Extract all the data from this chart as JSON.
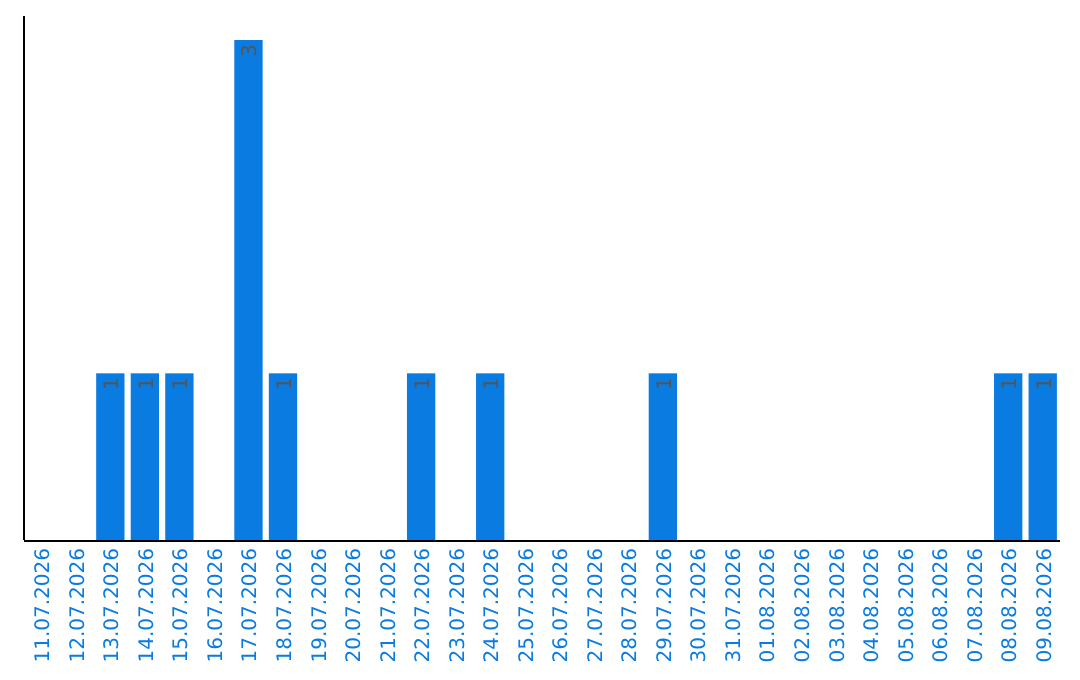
{
  "chart_data": {
    "type": "bar",
    "categories": [
      "11.07.2026",
      "12.07.2026",
      "13.07.2026",
      "14.07.2026",
      "15.07.2026",
      "16.07.2026",
      "17.07.2026",
      "18.07.2026",
      "19.07.2026",
      "20.07.2026",
      "21.07.2026",
      "22.07.2026",
      "23.07.2026",
      "24.07.2026",
      "25.07.2026",
      "26.07.2026",
      "27.07.2026",
      "28.07.2026",
      "29.07.2026",
      "30.07.2026",
      "31.07.2026",
      "01.08.2026",
      "02.08.2026",
      "03.08.2026",
      "04.08.2026",
      "05.08.2026",
      "06.08.2026",
      "07.08.2026",
      "08.08.2026",
      "09.08.2026"
    ],
    "values": [
      0,
      0,
      1,
      1,
      1,
      0,
      3,
      1,
      0,
      0,
      0,
      1,
      0,
      1,
      0,
      0,
      0,
      0,
      1,
      0,
      0,
      0,
      0,
      0,
      0,
      0,
      0,
      0,
      1,
      1
    ],
    "value_labels": [
      null,
      null,
      "1",
      "1",
      "1",
      null,
      "3",
      "1",
      null,
      null,
      null,
      "1",
      null,
      "1",
      null,
      null,
      null,
      null,
      "1",
      null,
      null,
      null,
      null,
      null,
      null,
      null,
      null,
      null,
      "1",
      "1"
    ],
    "color": "#0a7be0"
  }
}
